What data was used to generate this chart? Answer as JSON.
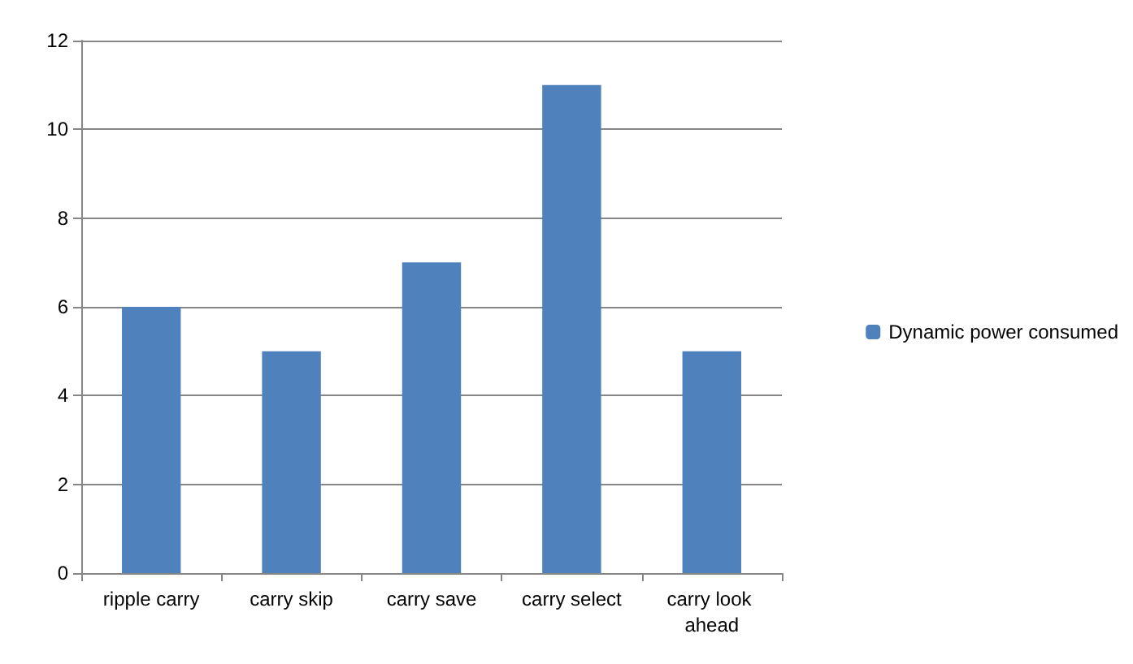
{
  "chart_data": {
    "type": "bar",
    "categories": [
      "ripple carry",
      "carry skip",
      "carry save",
      "carry select",
      "carry look ahead"
    ],
    "series": [
      {
        "name": "Dynamic power consumed",
        "color": "#4f81bd",
        "values": [
          6,
          5,
          7,
          11,
          5
        ]
      }
    ],
    "ylim": [
      0,
      12
    ],
    "yticks": [
      0,
      2,
      4,
      6,
      8,
      10,
      12
    ],
    "grid": "y",
    "legend": "right"
  }
}
